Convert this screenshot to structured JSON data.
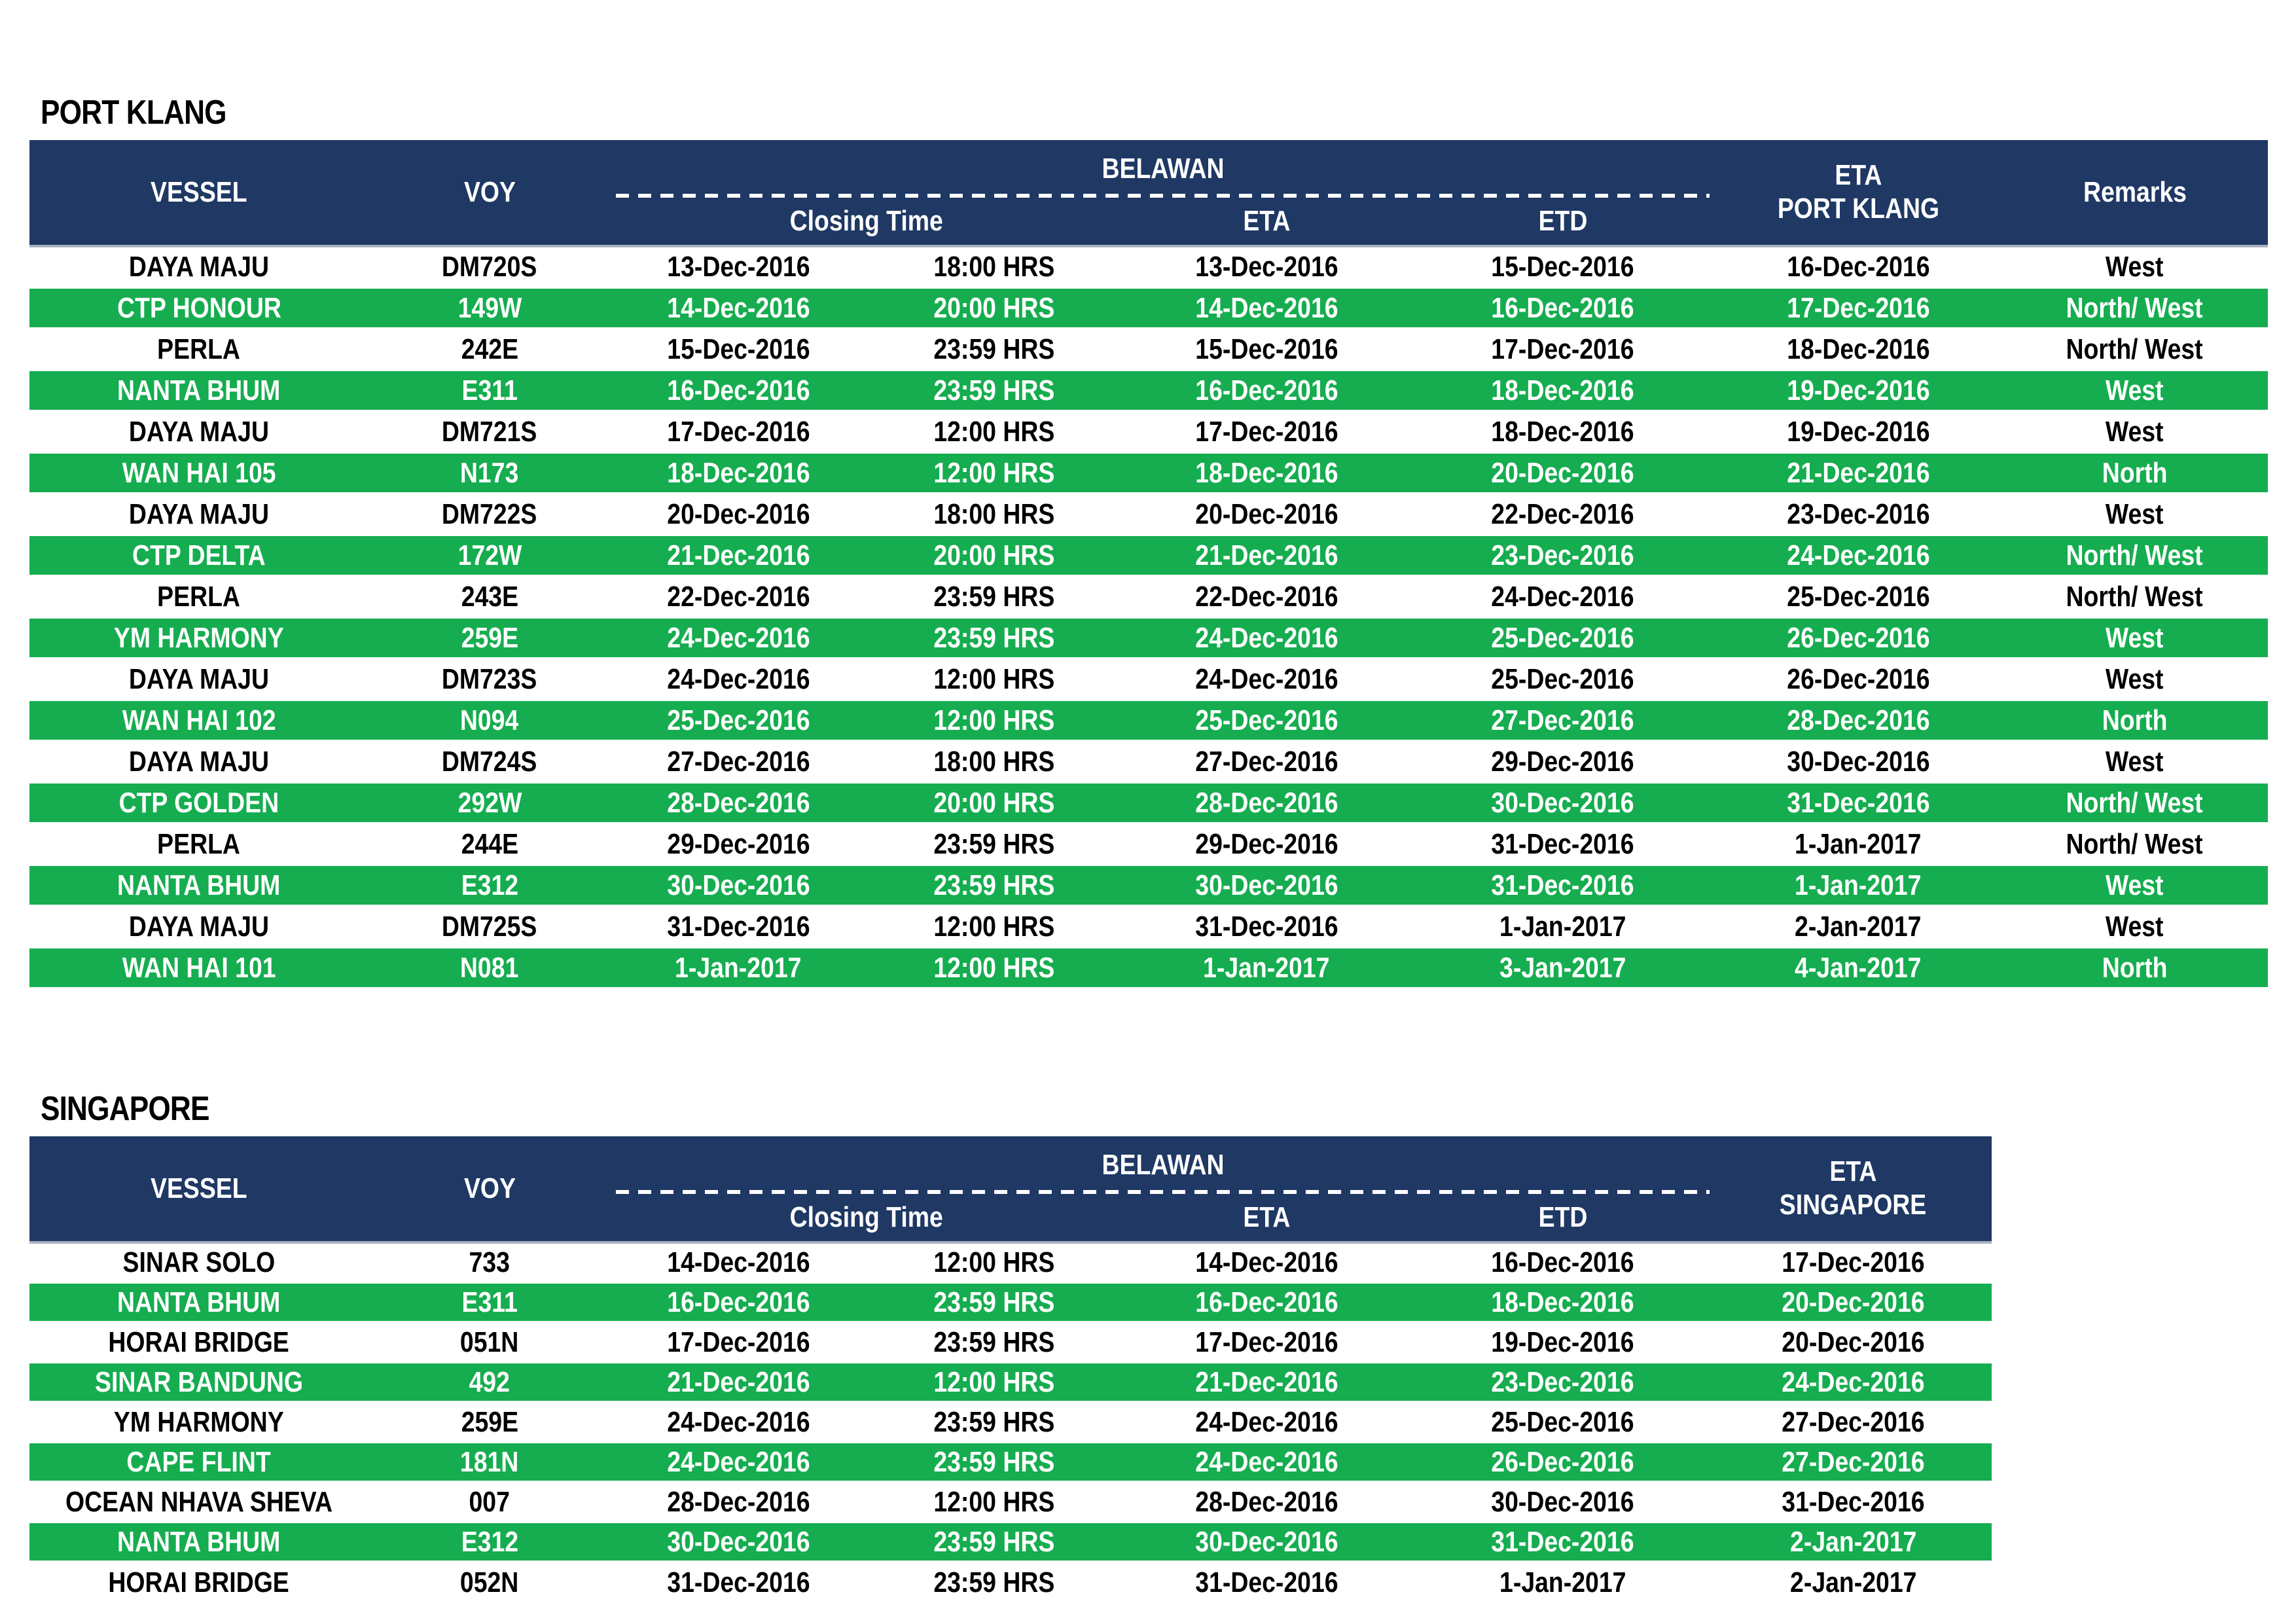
{
  "colors": {
    "navy": "#1F3864",
    "green": "#15AD4F",
    "header_separator": "#A9B1C2"
  },
  "port_klang": {
    "title": "PORT KLANG",
    "headers": {
      "vessel": "VESSEL",
      "voy": "VOY",
      "belawan": "BELAWAN",
      "closing_time": "Closing Time",
      "eta": "ETA",
      "etd": "ETD",
      "eta_dest_line1": "ETA",
      "eta_dest_line2": "PORT KLANG",
      "remarks": "Remarks"
    },
    "rows": [
      {
        "vessel": "DAYA MAJU",
        "voy": "DM720S",
        "closing_date": "13-Dec-2016",
        "closing_hrs": "18:00 HRS",
        "eta": "13-Dec-2016",
        "etd": "15-Dec-2016",
        "eta_dest": "16-Dec-2016",
        "remarks": "West",
        "highlight": false
      },
      {
        "vessel": "CTP HONOUR",
        "voy": "149W",
        "closing_date": "14-Dec-2016",
        "closing_hrs": "20:00 HRS",
        "eta": "14-Dec-2016",
        "etd": "16-Dec-2016",
        "eta_dest": "17-Dec-2016",
        "remarks": "North/ West",
        "highlight": true
      },
      {
        "vessel": "PERLA",
        "voy": "242E",
        "closing_date": "15-Dec-2016",
        "closing_hrs": "23:59 HRS",
        "eta": "15-Dec-2016",
        "etd": "17-Dec-2016",
        "eta_dest": "18-Dec-2016",
        "remarks": "North/ West",
        "highlight": false
      },
      {
        "vessel": "NANTA BHUM",
        "voy": "E311",
        "closing_date": "16-Dec-2016",
        "closing_hrs": "23:59 HRS",
        "eta": "16-Dec-2016",
        "etd": "18-Dec-2016",
        "eta_dest": "19-Dec-2016",
        "remarks": "West",
        "highlight": true
      },
      {
        "vessel": "DAYA MAJU",
        "voy": "DM721S",
        "closing_date": "17-Dec-2016",
        "closing_hrs": "12:00 HRS",
        "eta": "17-Dec-2016",
        "etd": "18-Dec-2016",
        "eta_dest": "19-Dec-2016",
        "remarks": "West",
        "highlight": false
      },
      {
        "vessel": "WAN HAI 105",
        "voy": "N173",
        "closing_date": "18-Dec-2016",
        "closing_hrs": "12:00 HRS",
        "eta": "18-Dec-2016",
        "etd": "20-Dec-2016",
        "eta_dest": "21-Dec-2016",
        "remarks": "North",
        "highlight": true
      },
      {
        "vessel": "DAYA MAJU",
        "voy": "DM722S",
        "closing_date": "20-Dec-2016",
        "closing_hrs": "18:00 HRS",
        "eta": "20-Dec-2016",
        "etd": "22-Dec-2016",
        "eta_dest": "23-Dec-2016",
        "remarks": "West",
        "highlight": false
      },
      {
        "vessel": "CTP DELTA",
        "voy": "172W",
        "closing_date": "21-Dec-2016",
        "closing_hrs": "20:00 HRS",
        "eta": "21-Dec-2016",
        "etd": "23-Dec-2016",
        "eta_dest": "24-Dec-2016",
        "remarks": "North/ West",
        "highlight": true
      },
      {
        "vessel": "PERLA",
        "voy": "243E",
        "closing_date": "22-Dec-2016",
        "closing_hrs": "23:59 HRS",
        "eta": "22-Dec-2016",
        "etd": "24-Dec-2016",
        "eta_dest": "25-Dec-2016",
        "remarks": "North/ West",
        "highlight": false
      },
      {
        "vessel": "YM HARMONY",
        "voy": "259E",
        "closing_date": "24-Dec-2016",
        "closing_hrs": "23:59 HRS",
        "eta": "24-Dec-2016",
        "etd": "25-Dec-2016",
        "eta_dest": "26-Dec-2016",
        "remarks": "West",
        "highlight": true
      },
      {
        "vessel": "DAYA MAJU",
        "voy": "DM723S",
        "closing_date": "24-Dec-2016",
        "closing_hrs": "12:00 HRS",
        "eta": "24-Dec-2016",
        "etd": "25-Dec-2016",
        "eta_dest": "26-Dec-2016",
        "remarks": "West",
        "highlight": false
      },
      {
        "vessel": "WAN HAI 102",
        "voy": "N094",
        "closing_date": "25-Dec-2016",
        "closing_hrs": "12:00 HRS",
        "eta": "25-Dec-2016",
        "etd": "27-Dec-2016",
        "eta_dest": "28-Dec-2016",
        "remarks": "North",
        "highlight": true
      },
      {
        "vessel": "DAYA MAJU",
        "voy": "DM724S",
        "closing_date": "27-Dec-2016",
        "closing_hrs": "18:00 HRS",
        "eta": "27-Dec-2016",
        "etd": "29-Dec-2016",
        "eta_dest": "30-Dec-2016",
        "remarks": "West",
        "highlight": false
      },
      {
        "vessel": "CTP GOLDEN",
        "voy": "292W",
        "closing_date": "28-Dec-2016",
        "closing_hrs": "20:00 HRS",
        "eta": "28-Dec-2016",
        "etd": "30-Dec-2016",
        "eta_dest": "31-Dec-2016",
        "remarks": "North/ West",
        "highlight": true
      },
      {
        "vessel": "PERLA",
        "voy": "244E",
        "closing_date": "29-Dec-2016",
        "closing_hrs": "23:59 HRS",
        "eta": "29-Dec-2016",
        "etd": "31-Dec-2016",
        "eta_dest": "1-Jan-2017",
        "remarks": "North/ West",
        "highlight": false
      },
      {
        "vessel": "NANTA BHUM",
        "voy": "E312",
        "closing_date": "30-Dec-2016",
        "closing_hrs": "23:59 HRS",
        "eta": "30-Dec-2016",
        "etd": "31-Dec-2016",
        "eta_dest": "1-Jan-2017",
        "remarks": "West",
        "highlight": true
      },
      {
        "vessel": "DAYA MAJU",
        "voy": "DM725S",
        "closing_date": "31-Dec-2016",
        "closing_hrs": "12:00 HRS",
        "eta": "31-Dec-2016",
        "etd": "1-Jan-2017",
        "eta_dest": "2-Jan-2017",
        "remarks": "West",
        "highlight": false
      },
      {
        "vessel": "WAN HAI 101",
        "voy": "N081",
        "closing_date": "1-Jan-2017",
        "closing_hrs": "12:00 HRS",
        "eta": "1-Jan-2017",
        "etd": "3-Jan-2017",
        "eta_dest": "4-Jan-2017",
        "remarks": "North",
        "highlight": true
      }
    ]
  },
  "singapore": {
    "title": "SINGAPORE",
    "headers": {
      "vessel": "VESSEL",
      "voy": "VOY",
      "belawan": "BELAWAN",
      "closing_time": "Closing Time",
      "eta": "ETA",
      "etd": "ETD",
      "eta_dest_line1": "ETA",
      "eta_dest_line2": "SINGAPORE"
    },
    "rows": [
      {
        "vessel": "SINAR SOLO",
        "voy": "733",
        "closing_date": "14-Dec-2016",
        "closing_hrs": "12:00 HRS",
        "eta": "14-Dec-2016",
        "etd": "16-Dec-2016",
        "eta_dest": "17-Dec-2016",
        "highlight": false
      },
      {
        "vessel": "NANTA BHUM",
        "voy": "E311",
        "closing_date": "16-Dec-2016",
        "closing_hrs": "23:59 HRS",
        "eta": "16-Dec-2016",
        "etd": "18-Dec-2016",
        "eta_dest": "20-Dec-2016",
        "highlight": true
      },
      {
        "vessel": "HORAI BRIDGE",
        "voy": "051N",
        "closing_date": "17-Dec-2016",
        "closing_hrs": "23:59 HRS",
        "eta": "17-Dec-2016",
        "etd": "19-Dec-2016",
        "eta_dest": "20-Dec-2016",
        "highlight": false
      },
      {
        "vessel": "SINAR BANDUNG",
        "voy": "492",
        "closing_date": "21-Dec-2016",
        "closing_hrs": "12:00 HRS",
        "eta": "21-Dec-2016",
        "etd": "23-Dec-2016",
        "eta_dest": "24-Dec-2016",
        "highlight": true
      },
      {
        "vessel": "YM HARMONY",
        "voy": "259E",
        "closing_date": "24-Dec-2016",
        "closing_hrs": "23:59 HRS",
        "eta": "24-Dec-2016",
        "etd": "25-Dec-2016",
        "eta_dest": "27-Dec-2016",
        "highlight": false
      },
      {
        "vessel": "CAPE FLINT",
        "voy": "181N",
        "closing_date": "24-Dec-2016",
        "closing_hrs": "23:59 HRS",
        "eta": "24-Dec-2016",
        "etd": "26-Dec-2016",
        "eta_dest": "27-Dec-2016",
        "highlight": true
      },
      {
        "vessel": "OCEAN NHAVA SHEVA",
        "voy": "007",
        "closing_date": "28-Dec-2016",
        "closing_hrs": "12:00 HRS",
        "eta": "28-Dec-2016",
        "etd": "30-Dec-2016",
        "eta_dest": "31-Dec-2016",
        "highlight": false
      },
      {
        "vessel": "NANTA BHUM",
        "voy": "E312",
        "closing_date": "30-Dec-2016",
        "closing_hrs": "23:59 HRS",
        "eta": "30-Dec-2016",
        "etd": "31-Dec-2016",
        "eta_dest": "2-Jan-2017",
        "highlight": true
      },
      {
        "vessel": "HORAI BRIDGE",
        "voy": "052N",
        "closing_date": "31-Dec-2016",
        "closing_hrs": "23:59 HRS",
        "eta": "31-Dec-2016",
        "etd": "1-Jan-2017",
        "eta_dest": "2-Jan-2017",
        "highlight": false
      }
    ]
  }
}
